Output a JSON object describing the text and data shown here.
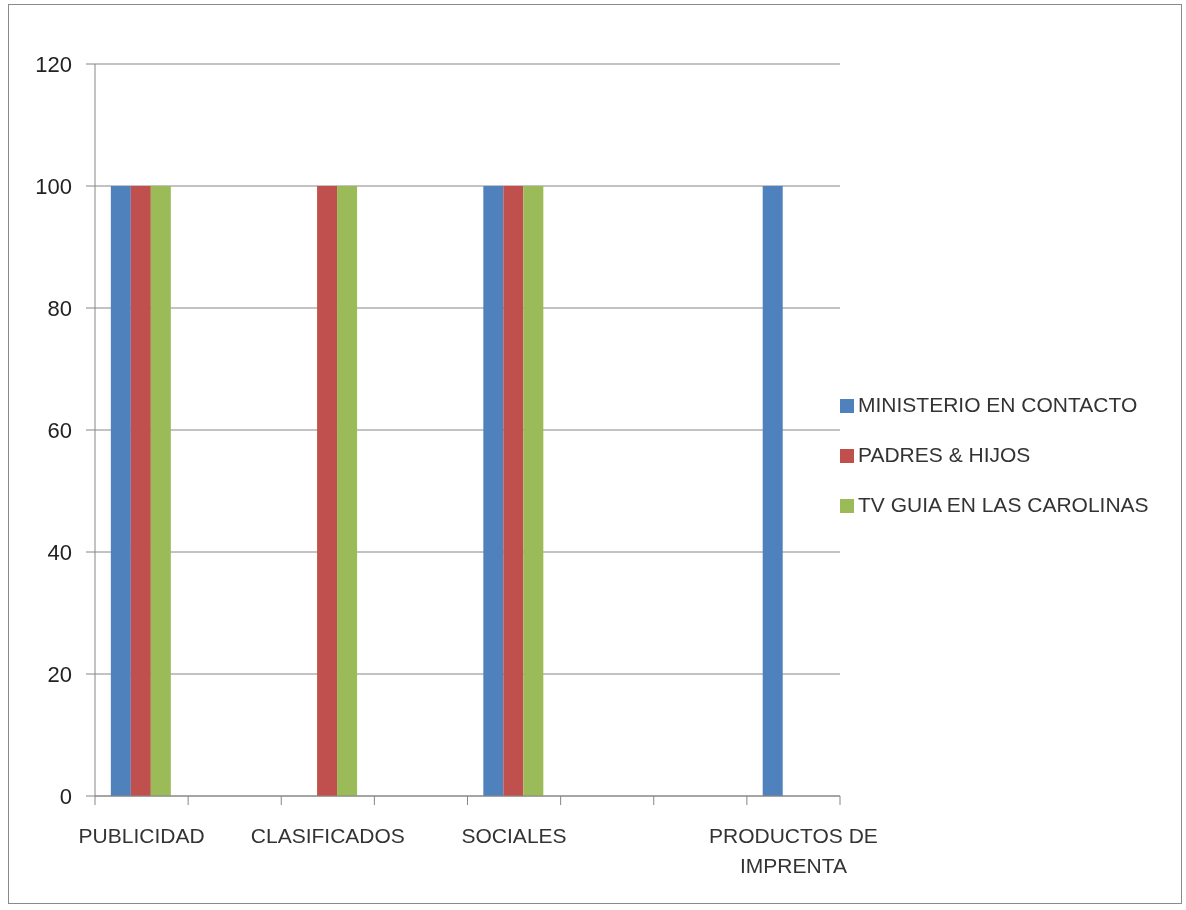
{
  "chart_data": {
    "type": "bar",
    "categories": [
      "PUBLICIDAD",
      null,
      "CLASIFICADOS",
      null,
      "SOCIALES",
      null,
      null,
      "PRODUCTOS DE IMPRENTA"
    ],
    "series": [
      {
        "name": "MINISTERIO EN CONTACTO",
        "color": "#4f81bd",
        "values": [
          100,
          null,
          null,
          null,
          100,
          null,
          null,
          100
        ]
      },
      {
        "name": "PADRES & HIJOS",
        "color": "#c0504d",
        "values": [
          100,
          null,
          100,
          null,
          100,
          null,
          null,
          null
        ]
      },
      {
        "name": "TV GUIA EN LAS CAROLINAS",
        "color": "#9bbb59",
        "values": [
          100,
          null,
          100,
          null,
          100,
          null,
          null,
          null
        ]
      }
    ],
    "ylim": [
      0,
      120
    ],
    "yticks": [
      0,
      20,
      40,
      60,
      80,
      100,
      120
    ],
    "grid": "y",
    "legend": "right"
  }
}
